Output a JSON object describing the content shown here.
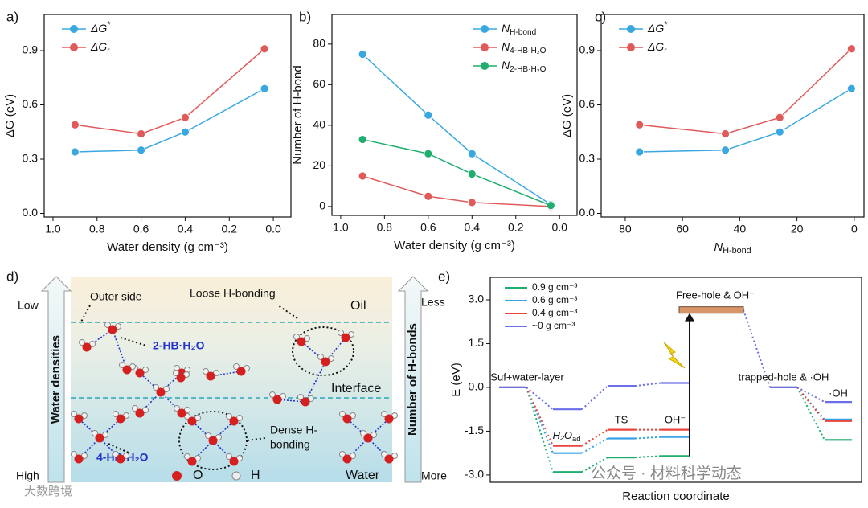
{
  "chart_data": [
    {
      "type": "line",
      "panel": "a)",
      "xlabel": "Water density (g cm⁻³)",
      "ylabel": "ΔG (eV)",
      "x": [
        0.9,
        0.6,
        0.4,
        0.04
      ],
      "xlim": [
        1.04,
        -0.08
      ],
      "xticks": [
        {
          "value": 1,
          "label": "1.0"
        },
        0.8,
        0.6,
        0.4,
        0.2,
        {
          "value": 0,
          "label": "0.0"
        }
      ],
      "ylim": [
        -0.02,
        1.1
      ],
      "yticks": [
        {
          "value": 0,
          "label": "0.0"
        },
        0.3,
        0.6,
        0.9
      ],
      "legend": "upper left",
      "series": [
        {
          "name": {
            "text": "ΔG",
            "sup": "*"
          },
          "color": "#3aa8e0",
          "values": [
            0.34,
            0.35,
            0.45,
            0.69
          ]
        },
        {
          "name": {
            "text": "ΔG",
            "sub": "r"
          },
          "color": "#e05a5a",
          "values": [
            0.49,
            0.44,
            0.53,
            0.91
          ]
        }
      ]
    },
    {
      "type": "line",
      "panel": "b)",
      "xlabel": "Water density (g cm⁻³)",
      "ylabel": "Number of H-bond",
      "x": [
        0.9,
        0.6,
        0.4,
        0.04
      ],
      "xlim": [
        1.04,
        -0.08
      ],
      "xticks": [
        {
          "value": 1,
          "label": "1.0"
        },
        0.8,
        0.6,
        0.4,
        0.2,
        {
          "value": 0,
          "label": "0.0"
        }
      ],
      "ylim": [
        -4.4,
        94.6
      ],
      "yticks": [
        0,
        20,
        40,
        60,
        80
      ],
      "legend": "upper right",
      "series": [
        {
          "name": {
            "text": "N",
            "sub": "H-bond"
          },
          "color": "#3aa8e0",
          "values": [
            75,
            45,
            26,
            1
          ]
        },
        {
          "name": {
            "text": "N",
            "sub": "4-HB·H₂O"
          },
          "color": "#e05a5a",
          "values": [
            15,
            5,
            2,
            0
          ]
        },
        {
          "name": {
            "text": "N",
            "sub": "2-HB·H₂O"
          },
          "color": "#1fae6e",
          "values": [
            33,
            26,
            16,
            0.5
          ]
        }
      ]
    },
    {
      "type": "line",
      "panel": "c)",
      "xlabel": {
        "text": "N",
        "sub": "H-bond"
      },
      "ylabel": "ΔG (eV)",
      "x": [
        75,
        45,
        26,
        1
      ],
      "xlim": [
        88.4,
        -3.4
      ],
      "xticks": [
        80,
        60,
        40,
        20,
        0
      ],
      "ylim": [
        -0.02,
        1.1
      ],
      "yticks": [
        {
          "value": 0,
          "label": "0.0"
        },
        0.3,
        0.6,
        0.9
      ],
      "legend": "upper left",
      "series": [
        {
          "name": {
            "text": "ΔG",
            "sup": "*"
          },
          "color": "#3aa8e0",
          "values": [
            0.34,
            0.35,
            0.45,
            0.69
          ]
        },
        {
          "name": {
            "text": "ΔG",
            "sub": "r"
          },
          "color": "#e05a5a",
          "values": [
            0.49,
            0.44,
            0.53,
            0.91
          ]
        }
      ]
    },
    {
      "type": "energy-levels",
      "panel": "e)",
      "xlabel": "Reaction coordinate",
      "ylabel": "E (eV)",
      "ylim": [
        -3.25,
        3.77
      ],
      "yticks": [
        {
          "value": 3,
          "label": "3.0"
        },
        1.5,
        {
          "value": 0,
          "label": "0.0"
        },
        -1.5,
        {
          "value": -3,
          "label": "-3.0"
        }
      ],
      "legend": "upper left",
      "stages": [
        "Suf+water-layer",
        {
          "text": "H₂O",
          "sub": "ad"
        },
        "TS",
        "OH⁻",
        "Free-hole & OH⁻",
        "trapped-hole & ·OH",
        "·OH"
      ],
      "free_hole": {
        "value": 2.65,
        "color": "#d9956a"
      },
      "series": [
        {
          "name": "0.9 g cm⁻³",
          "color": "#1fae6e",
          "values": [
            0,
            -2.9,
            -2.4,
            -2.35,
            null,
            0,
            -1.8
          ]
        },
        {
          "name": "0.6 g cm⁻³",
          "color": "#3aa3e8",
          "values": [
            0,
            -2.25,
            -1.75,
            -1.7,
            null,
            0,
            -1.1
          ]
        },
        {
          "name": "0.4 g cm⁻³",
          "color": "#e8453c",
          "values": [
            0,
            -2.0,
            -1.45,
            -1.45,
            null,
            0,
            -1.15
          ]
        },
        {
          "name": "~0 g cm⁻³",
          "color": "#6a6ee8",
          "values": [
            0,
            -0.75,
            0.05,
            0.15,
            null,
            0,
            -0.5
          ]
        }
      ]
    }
  ],
  "diagram": {
    "panel": "d)",
    "low": "Low",
    "high": "High",
    "left_axis": "Water densities",
    "outer": "Outer side",
    "loose": "Loose H-bonding",
    "oil": "Oil",
    "hb2": "2-HB·H₂O",
    "interface": "Interface",
    "dense1": "Dense H-",
    "dense2": "bonding",
    "hb4": "4-HB·H₂O",
    "o": "O",
    "h": "H",
    "water": "Water",
    "less": "Less",
    "more": "More",
    "right_axis": "Number of H-bonds"
  },
  "watermarks": [
    "公众号 · 材料科学动态",
    "大数跨境"
  ]
}
